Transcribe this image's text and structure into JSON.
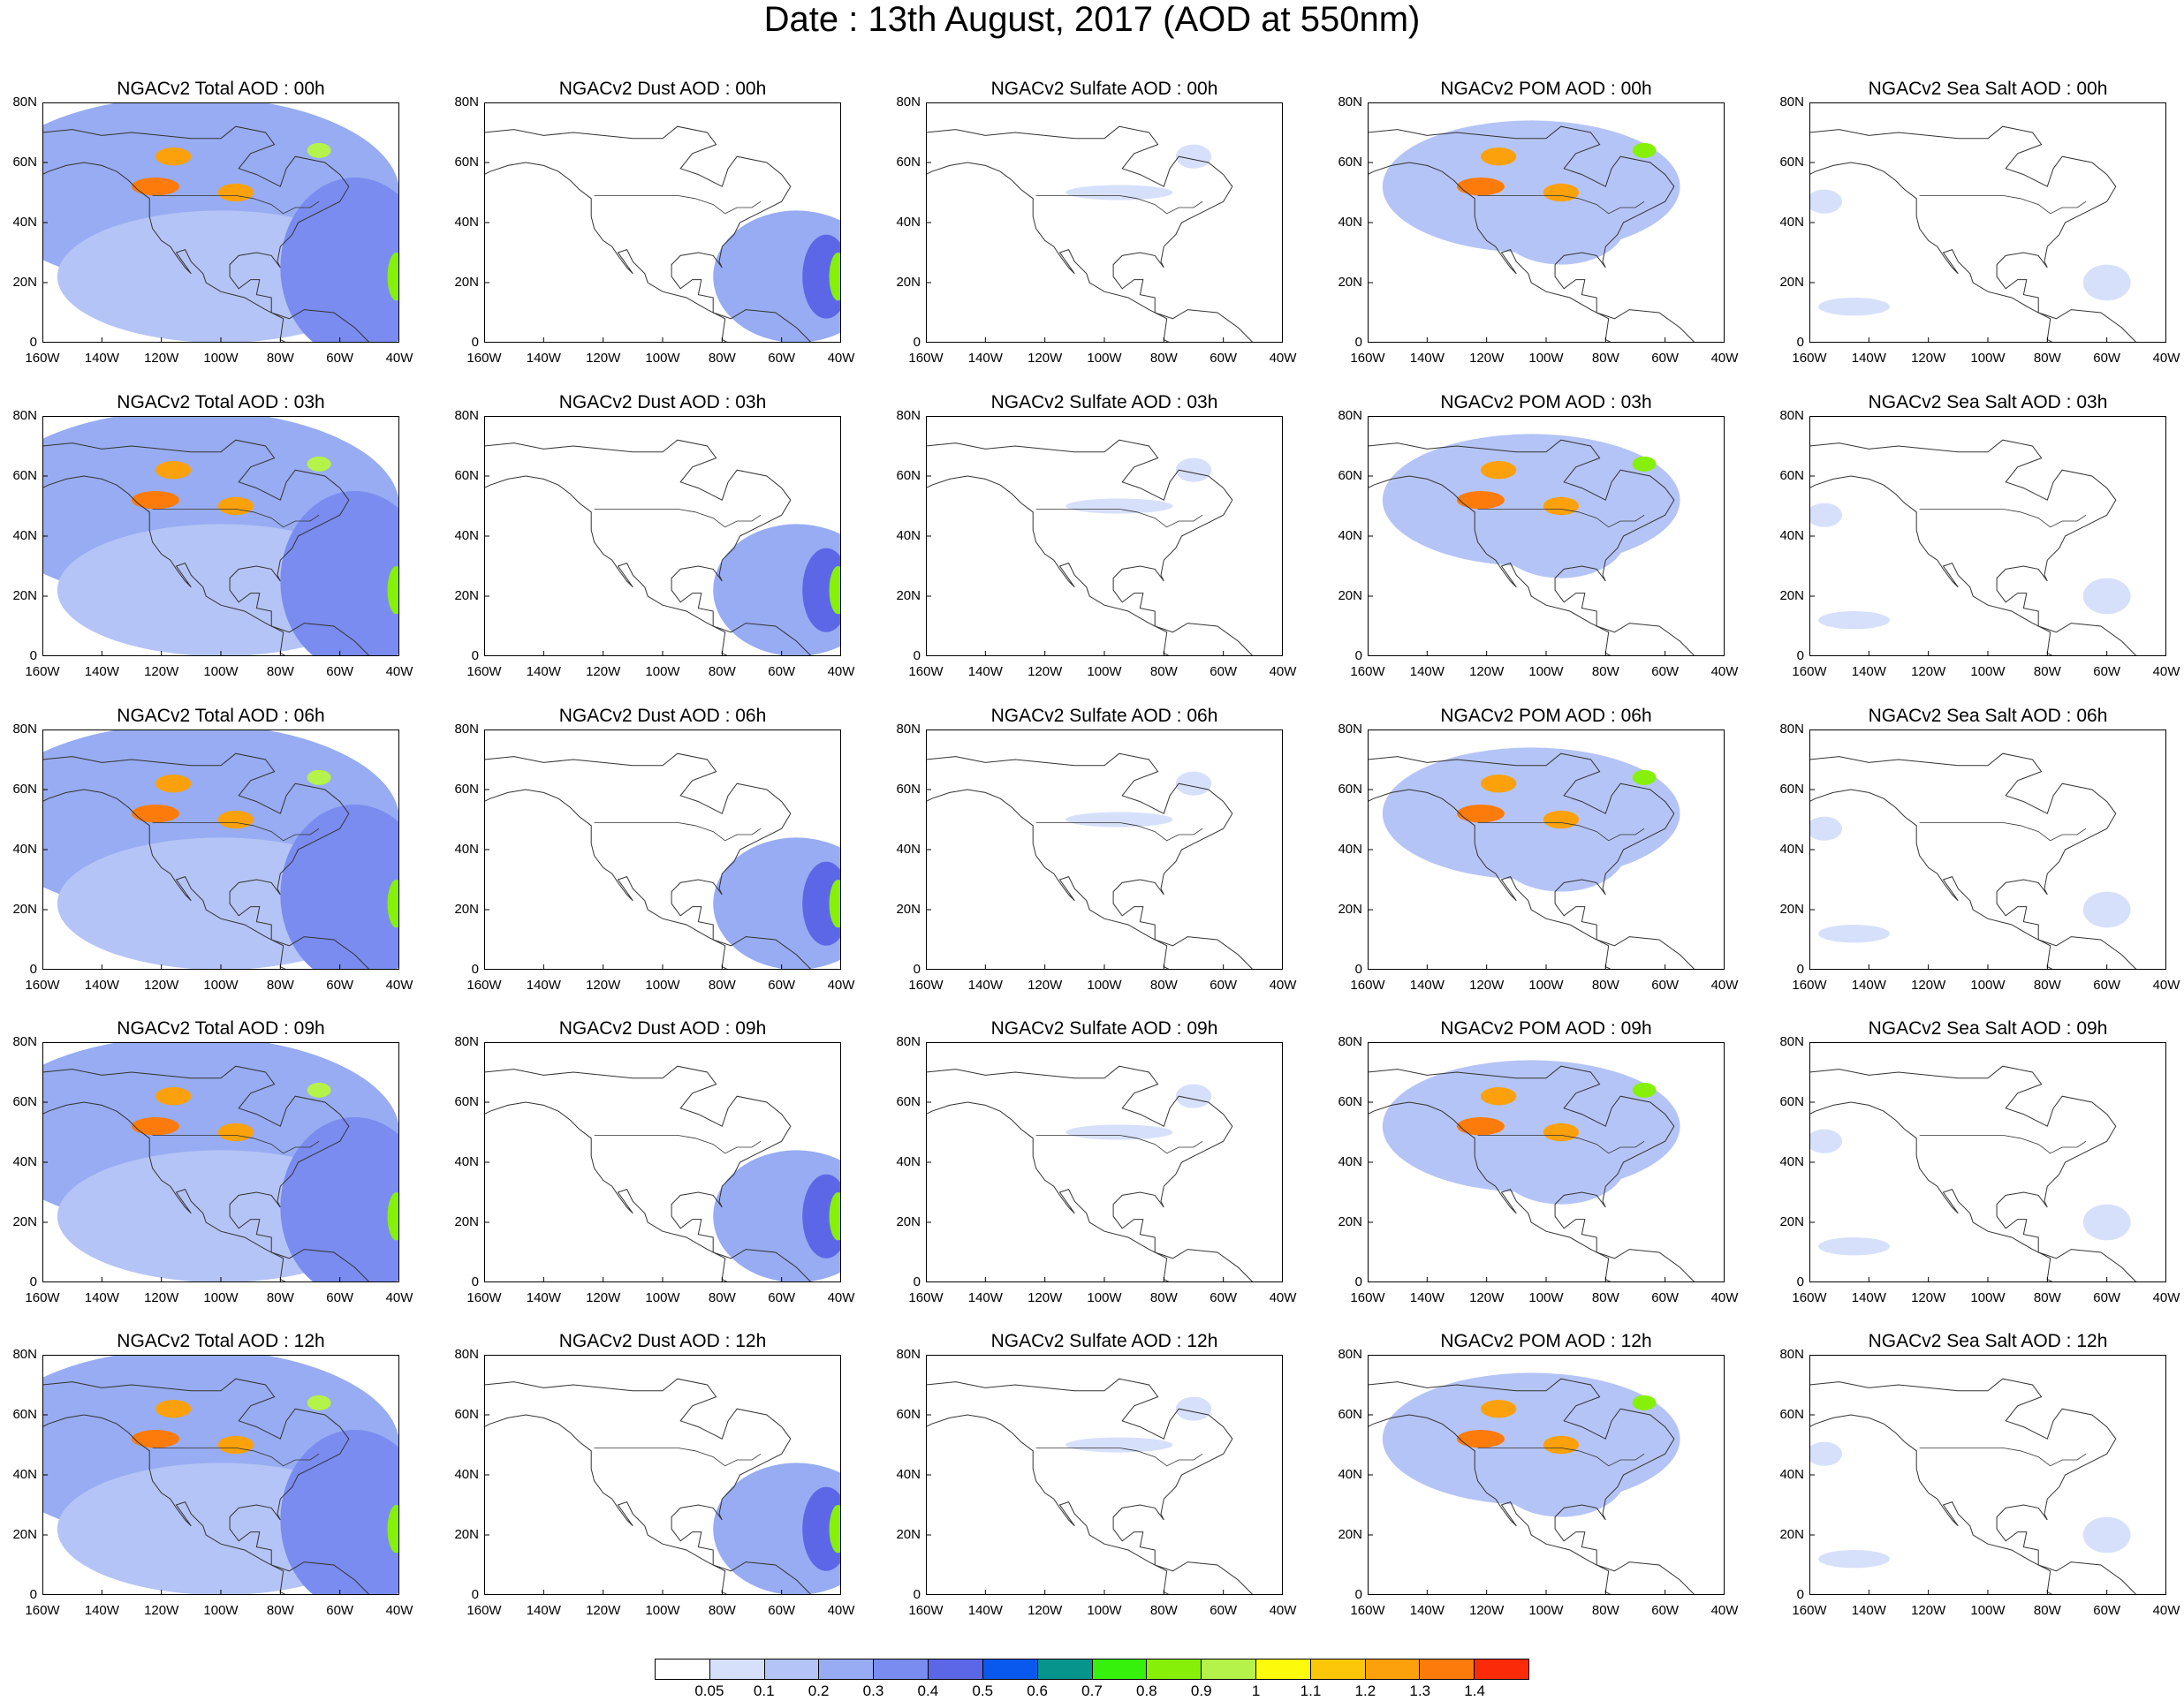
{
  "title": "Date : 13th August, 2017 (AOD at 550nm)",
  "lat_ticks": [
    "80N",
    "60N",
    "40N",
    "20N",
    "0"
  ],
  "lon_ticks": [
    "160W",
    "140W",
    "120W",
    "100W",
    "80W",
    "60W",
    "40W"
  ],
  "panel_rows": [
    [
      "NGACv2 Total AOD : 00h",
      "NGACv2 Dust AOD : 00h",
      "NGACv2 Sulfate AOD : 00h",
      "NGACv2 POM AOD : 00h",
      "NGACv2 Sea Salt AOD : 00h"
    ],
    [
      "NGACv2 Total AOD : 03h",
      "NGACv2 Dust AOD : 03h",
      "NGACv2 Sulfate AOD : 03h",
      "NGACv2 POM AOD : 03h",
      "NGACv2 Sea Salt AOD : 03h"
    ],
    [
      "NGACv2 Total AOD : 06h",
      "NGACv2 Dust AOD : 06h",
      "NGACv2 Sulfate AOD : 06h",
      "NGACv2 POM AOD : 06h",
      "NGACv2 Sea Salt AOD : 06h"
    ],
    [
      "NGACv2 Total AOD : 09h",
      "NGACv2 Dust AOD : 09h",
      "NGACv2 Sulfate AOD : 09h",
      "NGACv2 POM AOD : 09h",
      "NGACv2 Sea Salt  AOD : 09h"
    ],
    [
      "NGACv2 Total AOD  : 12h",
      "NGACv2 Dust AOD : 12h",
      "NGACv2 Sulfate AOD : 12h",
      "NGACv2 POM  AOD : 12h",
      "NGACv2 Sea Salt  AOD : 12h"
    ]
  ],
  "colorbar": {
    "colors": [
      "#ffffff",
      "#d7e0fb",
      "#b5c4f6",
      "#97acf2",
      "#7a8cf0",
      "#5c67e8",
      "#0a59ee",
      "#06948d",
      "#36f10b",
      "#86f008",
      "#b5f24a",
      "#fdfb0b",
      "#fcc709",
      "#fca10c",
      "#fc7b0a",
      "#fb2b0a"
    ],
    "labels": [
      "0.05",
      "0.1",
      "0.2",
      "0.3",
      "0.4",
      "0.5",
      "0.6",
      "0.7",
      "0.8",
      "0.9",
      "1",
      "1.1",
      "1.2",
      "1.3",
      "1.4"
    ]
  },
  "species_patterns": {
    "total": [
      {
        "lon": -110,
        "lat": 50,
        "rx": 70,
        "ry": 32,
        "level": 3
      },
      {
        "lon": -100,
        "lat": 22,
        "rx": 55,
        "ry": 22,
        "level": 2
      },
      {
        "lon": -55,
        "lat": 25,
        "rx": 25,
        "ry": 30,
        "level": 4
      },
      {
        "lon": -122,
        "lat": 52,
        "rx": 8,
        "ry": 3,
        "level": 14
      },
      {
        "lon": -116,
        "lat": 62,
        "rx": 6,
        "ry": 3,
        "level": 13
      },
      {
        "lon": -95,
        "lat": 50,
        "rx": 6,
        "ry": 3,
        "level": 13
      },
      {
        "lon": -67,
        "lat": 64,
        "rx": 4,
        "ry": 2.5,
        "level": 10
      },
      {
        "lon": -41,
        "lat": 22,
        "rx": 3,
        "ry": 8,
        "level": 9
      }
    ],
    "dust": [
      {
        "lon": -55,
        "lat": 22,
        "rx": 28,
        "ry": 22,
        "level": 3
      },
      {
        "lon": -45,
        "lat": 22,
        "rx": 8,
        "ry": 14,
        "level": 5
      },
      {
        "lon": -41,
        "lat": 22,
        "rx": 3,
        "ry": 8,
        "level": 9
      }
    ],
    "sulfate": [
      {
        "lon": -95,
        "lat": 50,
        "rx": 18,
        "ry": 2.5,
        "level": 1
      },
      {
        "lon": -70,
        "lat": 62,
        "rx": 6,
        "ry": 4,
        "level": 1
      }
    ],
    "pom": [
      {
        "lon": -105,
        "lat": 52,
        "rx": 50,
        "ry": 22,
        "level": 2
      },
      {
        "lon": -95,
        "lat": 40,
        "rx": 22,
        "ry": 14,
        "level": 2
      },
      {
        "lon": -122,
        "lat": 52,
        "rx": 8,
        "ry": 3,
        "level": 14
      },
      {
        "lon": -116,
        "lat": 62,
        "rx": 6,
        "ry": 3,
        "level": 13
      },
      {
        "lon": -95,
        "lat": 50,
        "rx": 6,
        "ry": 3,
        "level": 13
      },
      {
        "lon": -67,
        "lat": 64,
        "rx": 4,
        "ry": 2.5,
        "level": 9
      }
    ],
    "seasalt": [
      {
        "lon": -155,
        "lat": 47,
        "rx": 6,
        "ry": 4,
        "level": 1
      },
      {
        "lon": -145,
        "lat": 12,
        "rx": 12,
        "ry": 3,
        "level": 1
      },
      {
        "lon": -60,
        "lat": 20,
        "rx": 8,
        "ry": 6,
        "level": 1
      }
    ]
  }
}
